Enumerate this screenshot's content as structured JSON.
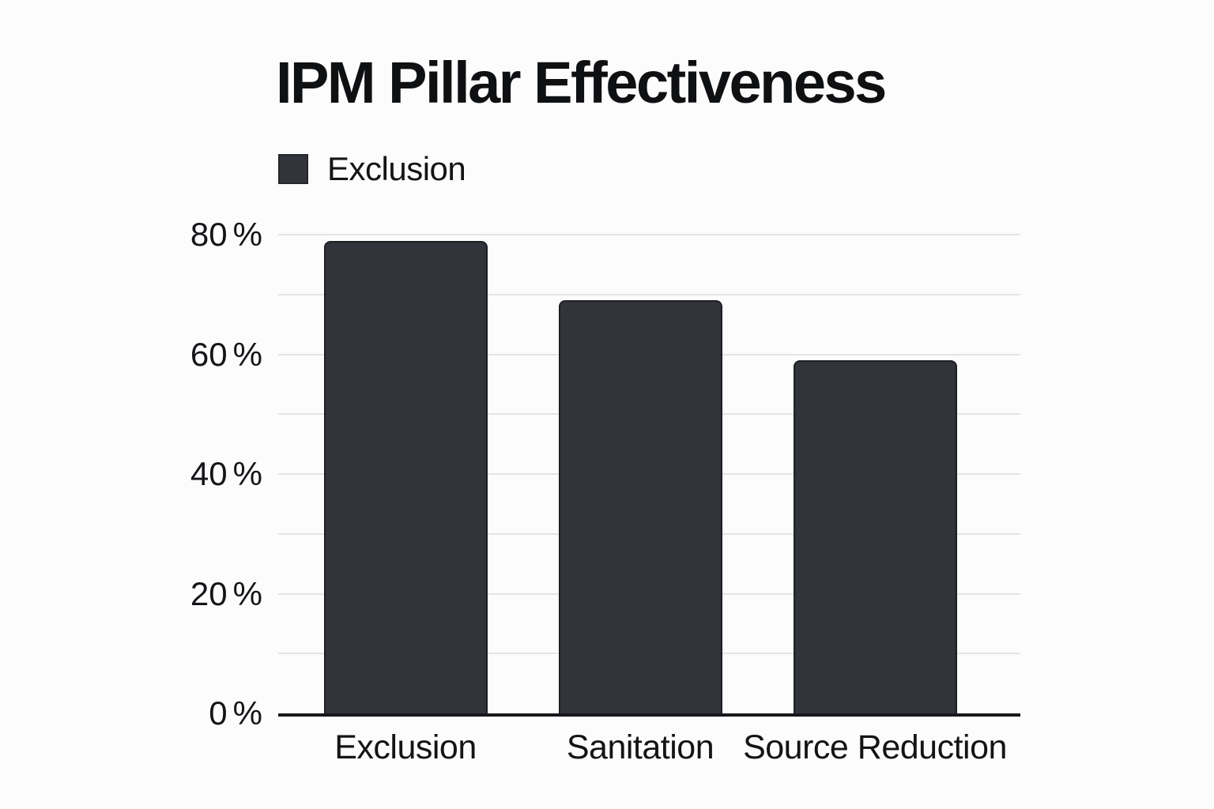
{
  "title": "IPM Pillar Effectiveness",
  "legend": {
    "label": "Exclusion",
    "swatch_color": "#32343b"
  },
  "colors": {
    "bar": "#32343b",
    "gridline": "#e4e4e7",
    "axis_line": "#17181b",
    "text": "#131416",
    "background": "#fcfcfd"
  },
  "chart_data": {
    "type": "bar",
    "title": "IPM Pillar Effectiveness",
    "categories": [
      "Exclusion",
      "Sanitation",
      "Source Reduction"
    ],
    "series": [
      {
        "name": "Exclusion",
        "values": [
          79,
          69,
          59
        ]
      }
    ],
    "unit": "%",
    "xlabel": "",
    "ylabel": "",
    "ylim": [
      0,
      80
    ],
    "ytick_values": [
      0,
      20,
      40,
      60,
      80
    ],
    "ytick_labels": [
      "0",
      "20",
      "40",
      "60",
      "80"
    ],
    "ytick_suffix": "%",
    "gridline_step": 10,
    "grid": true,
    "legend_position": "top-left"
  }
}
